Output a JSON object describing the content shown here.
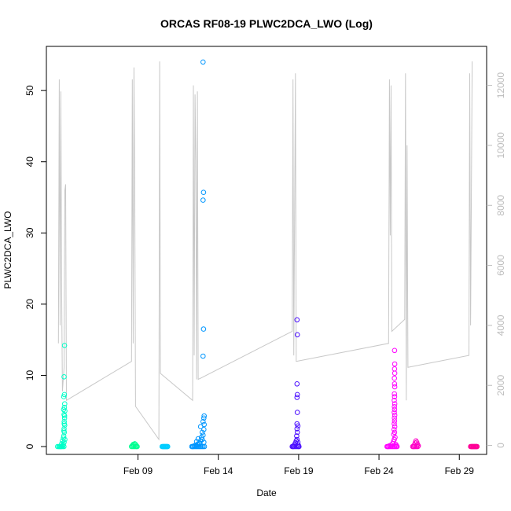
{
  "chart_data": {
    "type": "scatter",
    "title": "ORCAS RF08-19 PLWC2DCA_LWO (Log)",
    "xlabel": "Date",
    "ylabel": "PLWC2DCA_LWO",
    "x_ticks": [
      {
        "day": 9,
        "label": "Feb 09"
      },
      {
        "day": 14,
        "label": "Feb 14"
      },
      {
        "day": 19,
        "label": "Feb 19"
      },
      {
        "day": 24,
        "label": "Feb 24"
      },
      {
        "day": 29,
        "label": "Feb 29"
      }
    ],
    "xlim": [
      3.3,
      30.7
    ],
    "ylim": [
      -1.1,
      56.2
    ],
    "y_ticks": [
      0,
      10,
      20,
      30,
      40,
      50
    ],
    "y2lim": [
      -300,
      13300
    ],
    "y2_ticks": [
      0,
      2000,
      4000,
      6000,
      8000,
      10000,
      12000
    ],
    "y2_color": "#bdbdbd",
    "grid": false,
    "series": [
      {
        "color": "#00ffc8",
        "x_range": [
          4.0,
          4.45
        ],
        "points": [
          [
            4.1,
            0
          ],
          [
            4.2,
            0
          ],
          [
            4.3,
            0.1
          ],
          [
            4.35,
            0.3
          ],
          [
            4.4,
            0.6
          ],
          [
            4.45,
            1.0
          ],
          [
            4.38,
            1.5
          ],
          [
            4.42,
            2.0
          ],
          [
            4.4,
            2.5
          ],
          [
            4.44,
            3.0
          ],
          [
            4.41,
            3.5
          ],
          [
            4.43,
            4.0
          ],
          [
            4.4,
            4.5
          ],
          [
            4.45,
            5.0
          ],
          [
            4.42,
            5.5
          ],
          [
            4.44,
            6.0
          ],
          [
            4.38,
            7.0
          ],
          [
            4.42,
            7.3
          ],
          [
            4.4,
            9.8
          ],
          [
            4.43,
            14.2
          ],
          [
            4.3,
            0.8
          ],
          [
            4.25,
            0.4
          ],
          [
            4.36,
            1.2
          ],
          [
            4.39,
            2.2
          ],
          [
            4.41,
            3.2
          ],
          [
            4.43,
            4.3
          ],
          [
            4.37,
            5.2
          ]
        ]
      },
      {
        "color": "#00ff91",
        "x_range": [
          8.6,
          8.95
        ],
        "points": [
          [
            8.65,
            0.1
          ],
          [
            8.7,
            0.3
          ],
          [
            8.75,
            0.2
          ],
          [
            8.8,
            0.4
          ],
          [
            8.85,
            0.3
          ],
          [
            8.9,
            0.1
          ],
          [
            8.95,
            0
          ]
        ]
      },
      {
        "color": "#00ccff",
        "x_range": [
          10.5,
          10.85
        ],
        "points": [
          [
            10.55,
            0
          ],
          [
            10.6,
            0
          ],
          [
            10.65,
            0
          ],
          [
            10.7,
            0
          ],
          [
            10.75,
            0
          ],
          [
            10.8,
            0
          ],
          [
            10.85,
            0
          ]
        ]
      },
      {
        "color": "#0096ff",
        "x_range": [
          12.35,
          13.15
        ],
        "points": [
          [
            12.4,
            0
          ],
          [
            12.5,
            0.1
          ],
          [
            12.6,
            0.2
          ],
          [
            12.7,
            0.3
          ],
          [
            12.8,
            0.5
          ],
          [
            12.9,
            0.8
          ],
          [
            13.0,
            1.0
          ],
          [
            13.1,
            0.6
          ],
          [
            12.95,
            1.3
          ],
          [
            13.05,
            1.6
          ],
          [
            13.0,
            2.0
          ],
          [
            13.1,
            2.4
          ],
          [
            12.9,
            2.8
          ],
          [
            13.12,
            3.1
          ],
          [
            13.05,
            3.5
          ],
          [
            13.1,
            4.0
          ],
          [
            13.12,
            4.3
          ],
          [
            13.05,
            12.7
          ],
          [
            13.08,
            16.5
          ],
          [
            13.05,
            34.6
          ],
          [
            13.08,
            35.7
          ],
          [
            13.05,
            54.0
          ],
          [
            12.85,
            0.4
          ],
          [
            12.75,
            1.1
          ],
          [
            12.65,
            0.7
          ]
        ]
      },
      {
        "color": "#4b0fff",
        "x_range": [
          18.6,
          19.05
        ],
        "points": [
          [
            18.65,
            0
          ],
          [
            18.7,
            0.1
          ],
          [
            18.75,
            0.3
          ],
          [
            18.8,
            0.5
          ],
          [
            18.85,
            0.8
          ],
          [
            18.9,
            1.0
          ],
          [
            18.95,
            0.6
          ],
          [
            18.88,
            1.5
          ],
          [
            18.92,
            2.0
          ],
          [
            18.9,
            2.5
          ],
          [
            18.95,
            2.9
          ],
          [
            18.9,
            3.2
          ],
          [
            18.92,
            4.8
          ],
          [
            18.9,
            6.9
          ],
          [
            18.92,
            7.3
          ],
          [
            18.9,
            8.8
          ],
          [
            18.92,
            15.7
          ],
          [
            18.9,
            17.8
          ],
          [
            18.98,
            0.2
          ],
          [
            19.02,
            0
          ]
        ]
      },
      {
        "color": "#ff00ff",
        "x_range": [
          24.5,
          25.15
        ],
        "points": [
          [
            24.55,
            0
          ],
          [
            24.65,
            0.1
          ],
          [
            24.75,
            0.2
          ],
          [
            24.85,
            0.4
          ],
          [
            24.9,
            0.7
          ],
          [
            24.95,
            1.0
          ],
          [
            25.0,
            1.3
          ],
          [
            24.92,
            1.7
          ],
          [
            24.97,
            2.0
          ],
          [
            24.94,
            2.4
          ],
          [
            24.98,
            2.8
          ],
          [
            24.95,
            3.2
          ],
          [
            24.97,
            3.6
          ],
          [
            24.96,
            4.0
          ],
          [
            24.98,
            4.4
          ],
          [
            24.95,
            4.8
          ],
          [
            24.97,
            5.2
          ],
          [
            24.96,
            5.6
          ],
          [
            24.98,
            6.0
          ],
          [
            24.95,
            6.5
          ],
          [
            24.97,
            7.0
          ],
          [
            24.96,
            7.4
          ],
          [
            24.98,
            8.4
          ],
          [
            24.97,
            8.8
          ],
          [
            24.96,
            9.6
          ],
          [
            24.98,
            10.3
          ],
          [
            24.97,
            10.9
          ],
          [
            24.98,
            11.6
          ],
          [
            24.97,
            13.5
          ],
          [
            25.05,
            0.3
          ],
          [
            25.1,
            0.1
          ]
        ]
      },
      {
        "color": "#ff00c8",
        "x_range": [
          26.1,
          26.45
        ],
        "points": [
          [
            26.15,
            0
          ],
          [
            26.2,
            0.2
          ],
          [
            26.25,
            0.5
          ],
          [
            26.3,
            0.8
          ],
          [
            26.35,
            0.6
          ],
          [
            26.4,
            0.3
          ],
          [
            26.45,
            0.1
          ]
        ]
      },
      {
        "color": "#ff0096",
        "x_range": [
          29.7,
          30.1
        ],
        "points": [
          [
            29.75,
            0
          ],
          [
            29.8,
            0
          ],
          [
            29.85,
            0
          ],
          [
            29.9,
            0
          ],
          [
            29.95,
            0
          ],
          [
            30.0,
            0
          ],
          [
            30.05,
            0
          ],
          [
            30.1,
            0
          ]
        ]
      }
    ],
    "secondary_line": {
      "color": "#c8c8c8",
      "axis": "right",
      "points": [
        [
          4.05,
          3400
        ],
        [
          4.1,
          12200
        ],
        [
          4.15,
          4000
        ],
        [
          4.2,
          11800
        ],
        [
          4.25,
          5200
        ],
        [
          4.3,
          1800
        ],
        [
          4.4,
          2600
        ],
        [
          4.45,
          8500
        ],
        [
          4.5,
          8700
        ],
        [
          4.55,
          1500
        ],
        [
          8.6,
          2800
        ],
        [
          8.65,
          12200
        ],
        [
          8.7,
          3400
        ],
        [
          8.75,
          12600
        ],
        [
          8.8,
          8700
        ],
        [
          8.85,
          1300
        ],
        [
          10.3,
          200
        ],
        [
          10.35,
          12800
        ],
        [
          10.4,
          2400
        ],
        [
          12.4,
          1500
        ],
        [
          12.45,
          12000
        ],
        [
          12.5,
          3000
        ],
        [
          12.55,
          11700
        ],
        [
          12.6,
          9500
        ],
        [
          12.65,
          2200
        ],
        [
          12.7,
          11800
        ],
        [
          12.75,
          2200
        ],
        [
          18.6,
          3800
        ],
        [
          18.65,
          12200
        ],
        [
          18.7,
          3000
        ],
        [
          18.8,
          12400
        ],
        [
          18.85,
          2800
        ],
        [
          24.6,
          3400
        ],
        [
          24.65,
          12200
        ],
        [
          24.7,
          7000
        ],
        [
          24.75,
          12000
        ],
        [
          24.8,
          3800
        ],
        [
          25.6,
          4200
        ],
        [
          25.65,
          12400
        ],
        [
          25.7,
          1500
        ],
        [
          25.75,
          10000
        ],
        [
          25.8,
          2600
        ],
        [
          29.6,
          3000
        ],
        [
          29.65,
          12400
        ],
        [
          29.7,
          4000
        ],
        [
          29.8,
          12800
        ]
      ]
    }
  }
}
